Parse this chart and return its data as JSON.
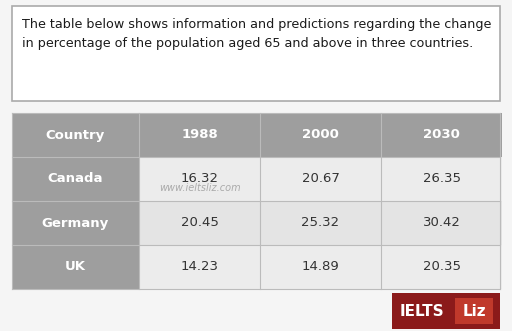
{
  "title_text": "The table below shows information and predictions regarding the change\nin percentage of the population aged 65 and above in three countries.",
  "columns": [
    "Country",
    "1988",
    "2000",
    "2030"
  ],
  "rows": [
    [
      "Canada",
      "16.32",
      "20.67",
      "26.35"
    ],
    [
      "Germany",
      "20.45",
      "25.32",
      "30.42"
    ],
    [
      "UK",
      "14.23",
      "14.89",
      "20.35"
    ]
  ],
  "watermark": "www.ieltsliz.com",
  "header_bg": "#9E9E9E",
  "header_text_color": "#FFFFFF",
  "country_col_bg": "#9E9E9E",
  "country_col_text_color": "#FFFFFF",
  "data_bg_even": "#ECECEC",
  "data_bg_odd": "#E4E4E4",
  "data_text_color": "#333333",
  "title_box_border": "#AAAAAA",
  "title_bg": "#FFFFFF",
  "fig_bg": "#F5F5F5",
  "ielts_bg": "#8B1A1A",
  "ielts_liz_box_bg": "#C0392B",
  "grid_line_color": "#BBBBBB",
  "title_fontsize": 9.2,
  "header_fontsize": 9.5,
  "cell_fontsize": 9.5,
  "watermark_fontsize": 7,
  "logo_fontsize": 11
}
